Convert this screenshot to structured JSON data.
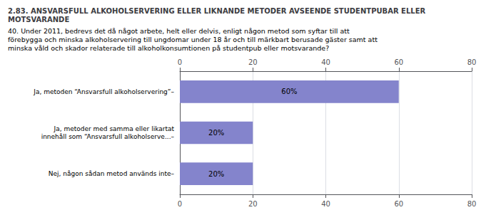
{
  "chart_data": {
    "type": "bar",
    "orientation": "horizontal",
    "title": "2.83. ANSVARSFULL ALKOHOLSERVERING ELLER LIKNANDE METODER AVSEENDE STUDENTPUBAR ELLER\nMOTSVARANDE",
    "subtitle": "40. Under 2011, bedrevs det då något arbete, helt eller delvis, enligt någon metod som syftar till att\nförebygga och minska alkoholservering till ungdomar under 18 år och till märkbart berusade gäster samt att\nminska våld och skador relaterade till alkoholkonsumtionen på studentpub eller motsvarande?",
    "categories": [
      "Ja, metoden “Ansvarsfull alkoholservering”–",
      "Ja, metoder med samma eller likartat\ninnehåll som “Ansvarsfull alkoholserve...–",
      "Nej, någon sådan metod används inte–"
    ],
    "values": [
      60,
      20,
      20
    ],
    "value_labels": [
      "60%",
      "20%",
      "20%"
    ],
    "data_labels": true,
    "color": "#8484cc",
    "xlim": [
      0,
      80
    ],
    "xticks": [
      0,
      20,
      40,
      60,
      80
    ],
    "grid": true
  }
}
